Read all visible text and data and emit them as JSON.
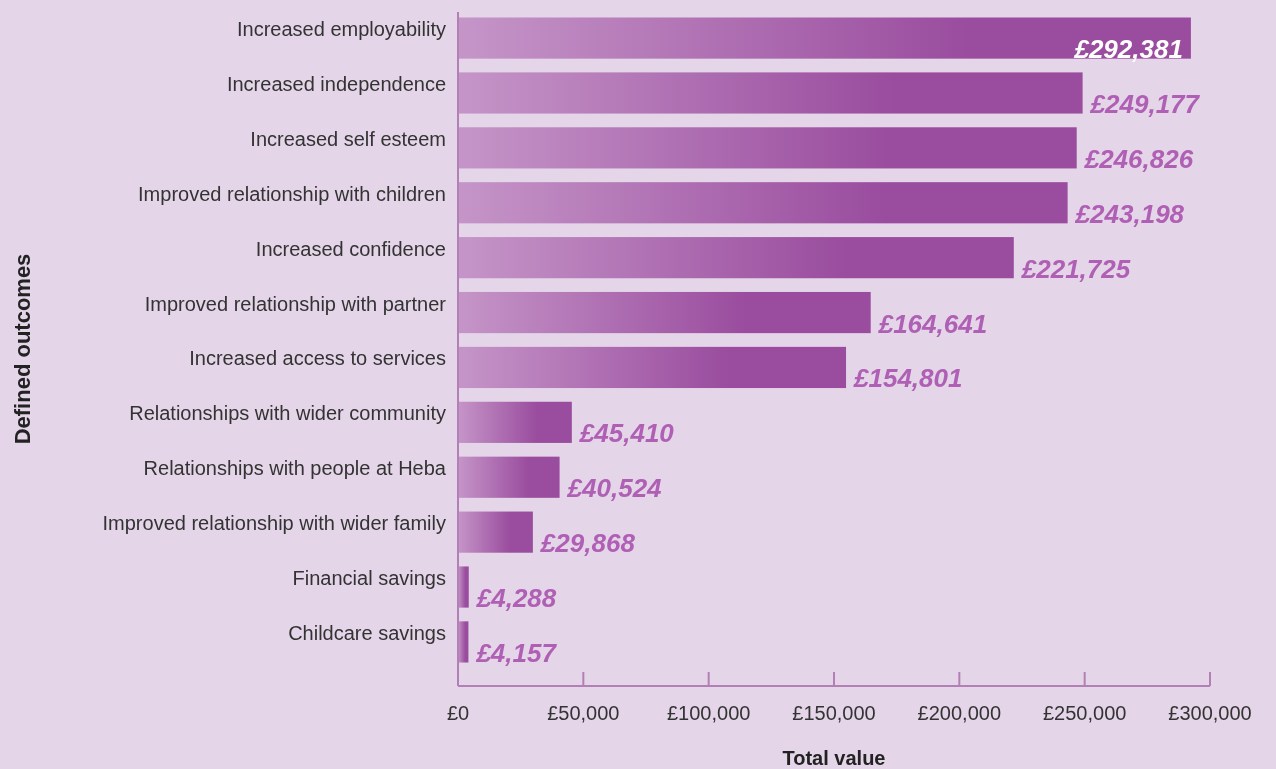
{
  "chart_data": {
    "type": "bar",
    "orientation": "horizontal",
    "xlabel": "Total value",
    "ylabel": "Defined outcomes",
    "categories": [
      "Increased employability",
      "Increased independence",
      "Increased self esteem",
      "Improved relationship with children",
      "Increased confidence",
      "Improved relationship with partner",
      "Increased access to services",
      "Relationships with wider community",
      "Relationships with people at Heba",
      "Improved relationship with wider family",
      "Financial savings",
      "Childcare savings"
    ],
    "values": [
      292381,
      249177,
      246826,
      243198,
      221725,
      164641,
      154801,
      45410,
      40524,
      29868,
      4288,
      4157
    ],
    "value_labels": [
      "£292,381",
      "£249,177",
      "£246,826",
      "£243,198",
      "£221,725",
      "£164,641",
      "£154,801",
      "£45,410",
      "£40,524",
      "£29,868",
      "£4,288",
      "£4,157"
    ],
    "color": "#9a4c9e",
    "xlim": [
      0,
      300000
    ],
    "xticks": [
      {
        "value": 0,
        "label": "£0"
      },
      {
        "value": 50000,
        "label": "£50,000"
      },
      {
        "value": 100000,
        "label": "£100,000"
      },
      {
        "value": 150000,
        "label": "£150,000"
      },
      {
        "value": 200000,
        "label": "£200,000"
      },
      {
        "value": 250000,
        "label": "£250,000"
      },
      {
        "value": 300000,
        "label": "£300,000"
      }
    ],
    "grid": false,
    "legend": false
  }
}
